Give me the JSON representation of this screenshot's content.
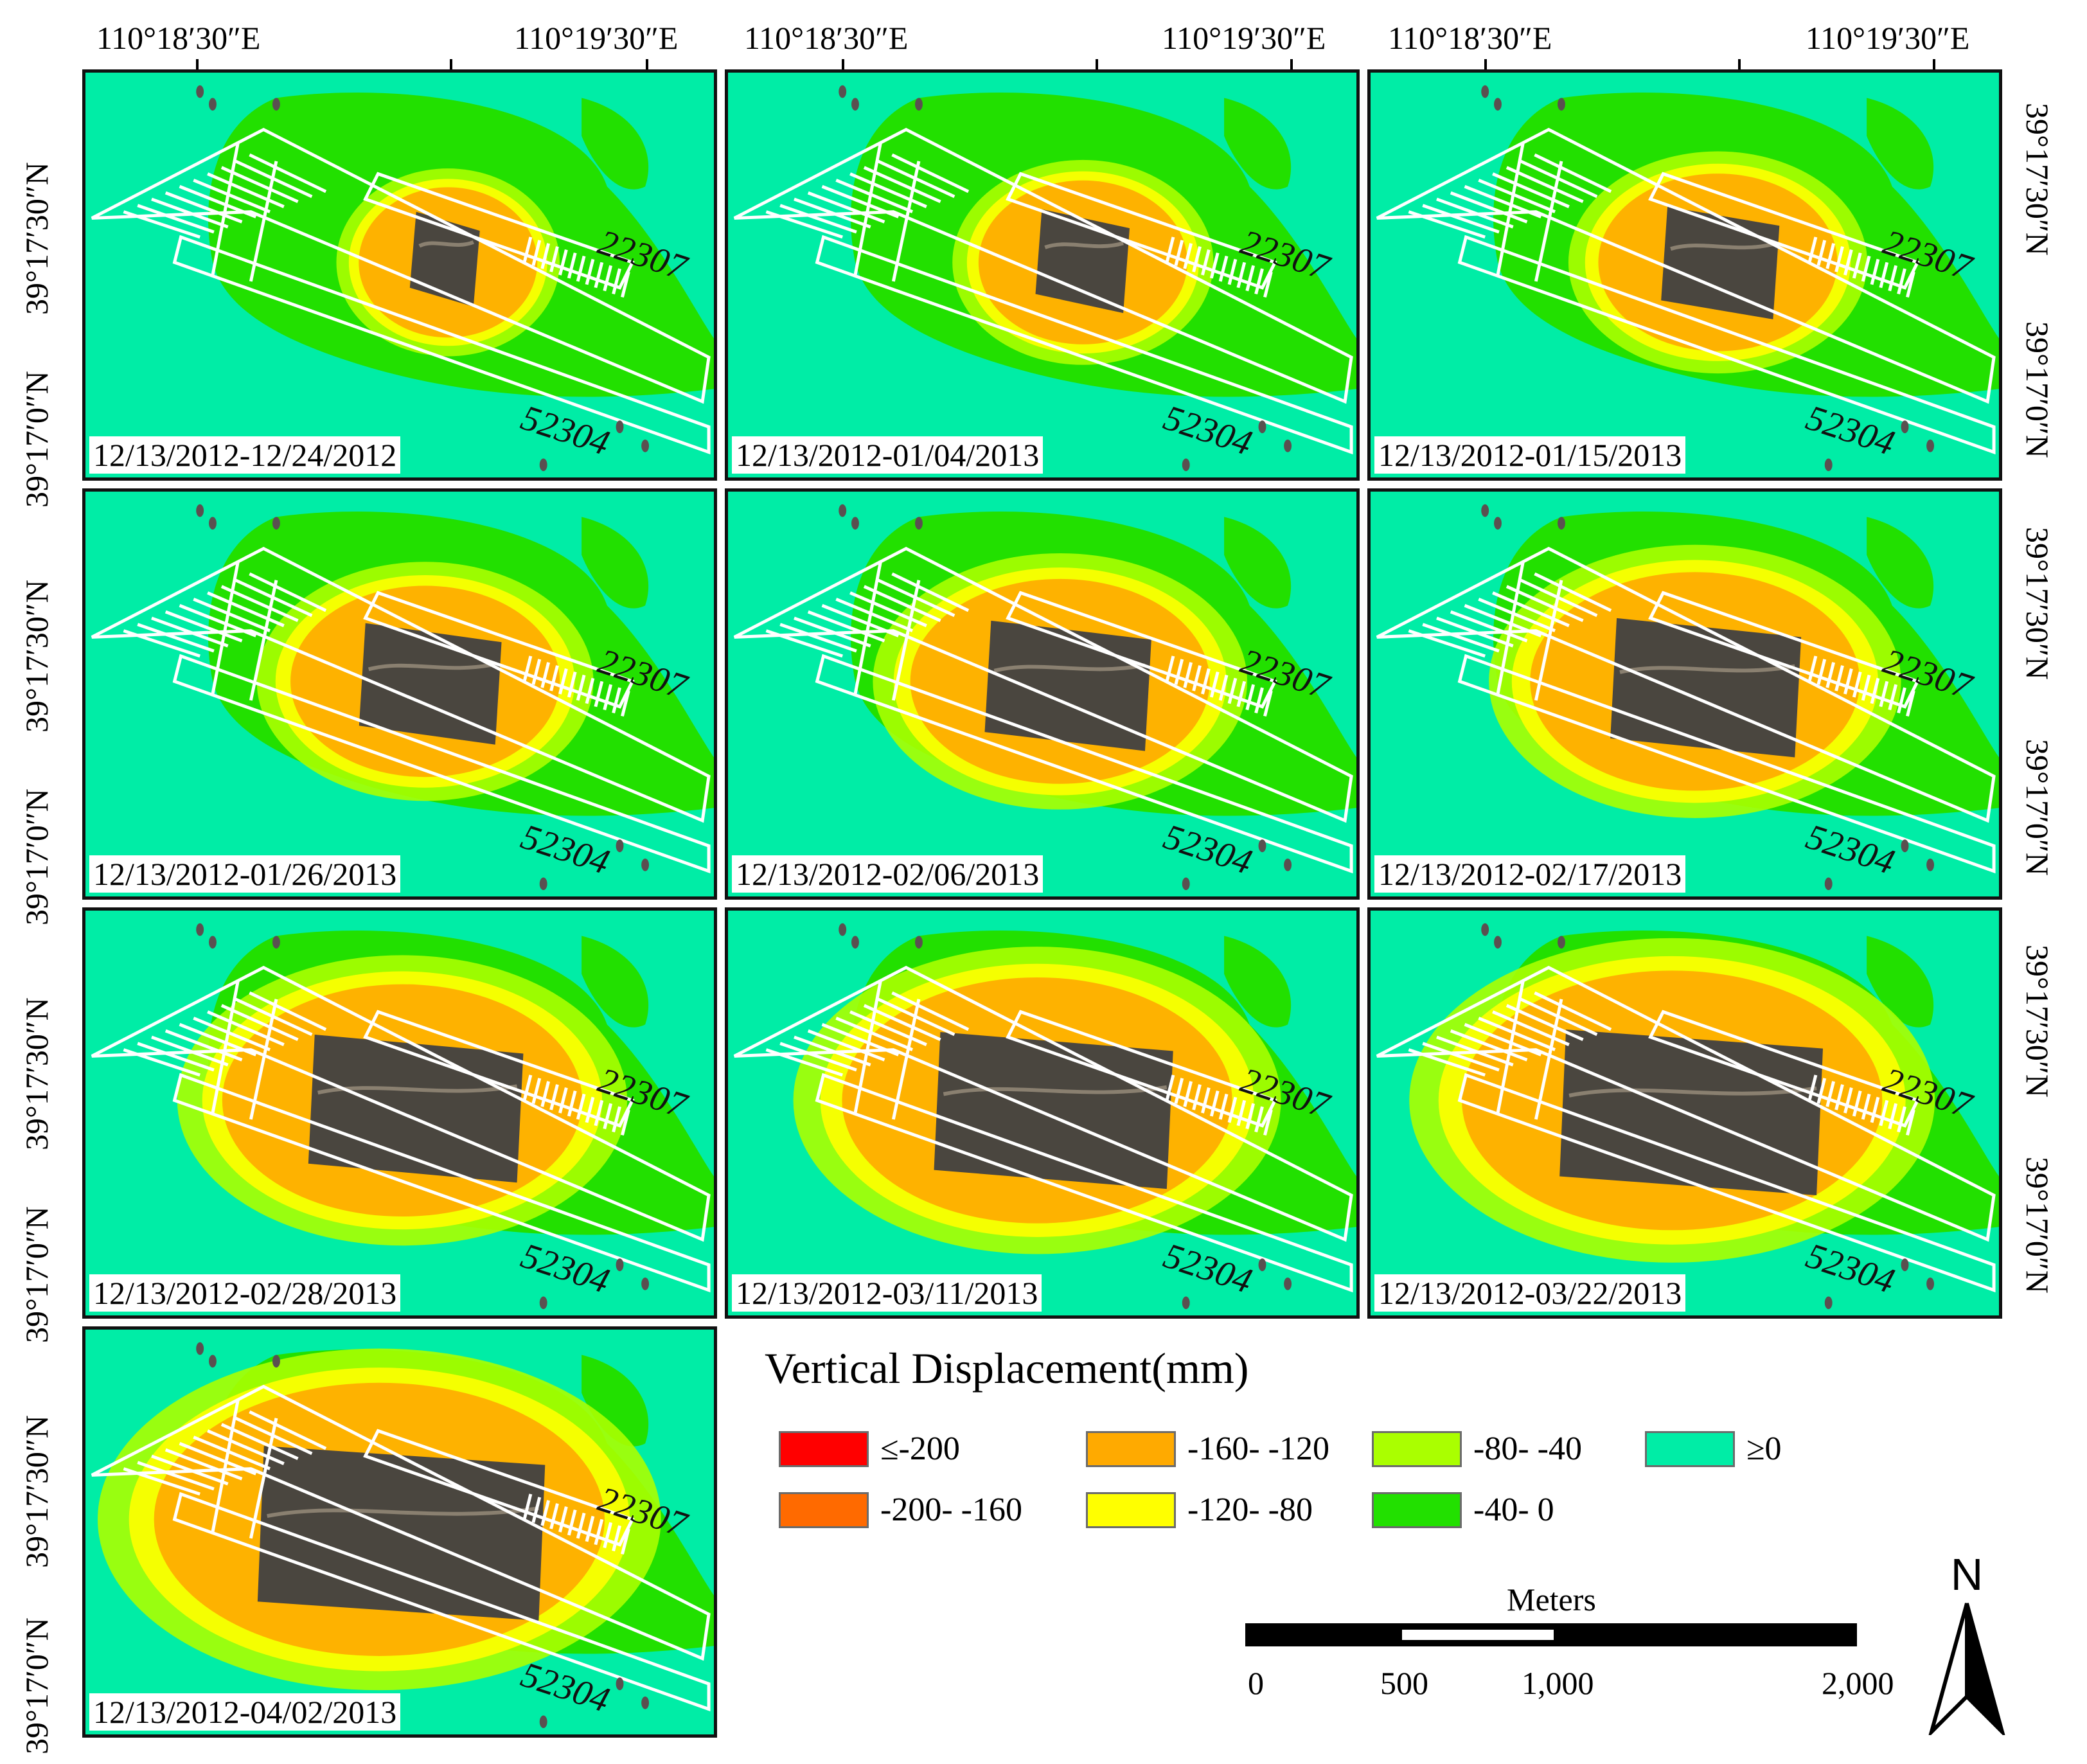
{
  "axes": {
    "lon_labels": [
      "110°18′30″E",
      "110°19′30″E"
    ],
    "lat_labels": [
      "39°17′30″N",
      "39°17′0″N"
    ]
  },
  "panels": [
    {
      "date": "12/13/2012-12/24/2012",
      "panel_a": "22307",
      "panel_b": "52304"
    },
    {
      "date": "12/13/2012-01/04/2013",
      "panel_a": "22307",
      "panel_b": "52304"
    },
    {
      "date": "12/13/2012-01/15/2013",
      "panel_a": "22307",
      "panel_b": "52304"
    },
    {
      "date": "12/13/2012-01/26/2013",
      "panel_a": "22307",
      "panel_b": "52304"
    },
    {
      "date": "12/13/2012-02/06/2013",
      "panel_a": "22307",
      "panel_b": "52304"
    },
    {
      "date": "12/13/2012-02/17/2013",
      "panel_a": "22307",
      "panel_b": "52304"
    },
    {
      "date": "12/13/2012-02/28/2013",
      "panel_a": "22307",
      "panel_b": "52304"
    },
    {
      "date": "12/13/2012-03/11/2013",
      "panel_a": "22307",
      "panel_b": "52304"
    },
    {
      "date": "12/13/2012-03/22/2013",
      "panel_a": "22307",
      "panel_b": "52304"
    },
    {
      "date": "12/13/2012-04/02/2013",
      "panel_a": "22307",
      "panel_b": "52304"
    }
  ],
  "legend": {
    "title": "Vertical Displacement(mm)",
    "classes": [
      {
        "label": "≤-200",
        "color": "#FF0000"
      },
      {
        "label": "-200- -160",
        "color": "#FF6A00"
      },
      {
        "label": "-160- -120",
        "color": "#FFAA00"
      },
      {
        "label": "-120- -80",
        "color": "#FFFF00"
      },
      {
        "label": "-80- -40",
        "color": "#AAFF00"
      },
      {
        "label": "-40- 0",
        "color": "#22E000"
      },
      {
        "label": "≥0",
        "color": "#00EDA6"
      }
    ]
  },
  "scale": {
    "unit": "Meters",
    "ticks": [
      "0",
      "500",
      "1,000",
      "2,000"
    ]
  },
  "north_label": "N"
}
